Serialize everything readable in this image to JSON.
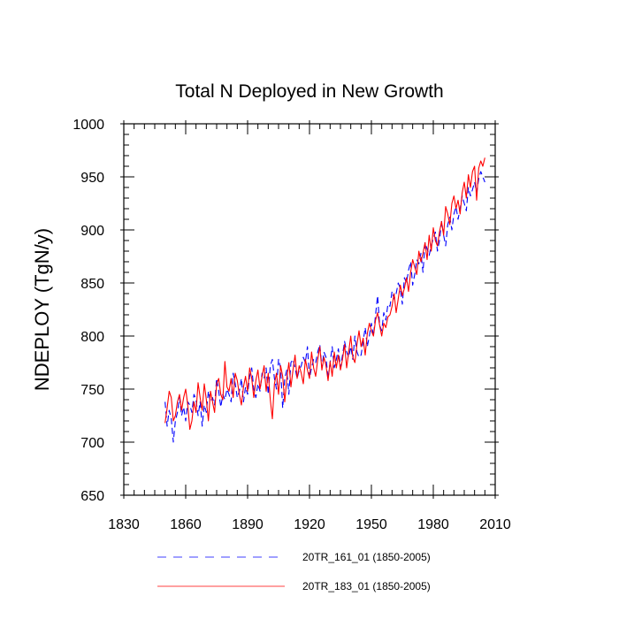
{
  "chart_data": {
    "type": "line",
    "title": "Total N Deployed in New Growth",
    "xlabel": "",
    "ylabel": "NDEPLOY  (TgN/y)",
    "xlim": [
      1830,
      2010
    ],
    "ylim": [
      650,
      1000
    ],
    "xticks": [
      1830,
      1860,
      1890,
      1920,
      1950,
      1980,
      2010
    ],
    "yticks": [
      650,
      700,
      750,
      800,
      850,
      900,
      950,
      1000
    ],
    "grid": false,
    "legend_position": "bottom",
    "series": [
      {
        "name": "20TR_161_01 (1850-2005)",
        "color": "#0000ff",
        "style": "dashed",
        "x": [
          1850,
          1851,
          1852,
          1853,
          1854,
          1855,
          1856,
          1857,
          1858,
          1859,
          1860,
          1861,
          1862,
          1863,
          1864,
          1865,
          1866,
          1867,
          1868,
          1869,
          1870,
          1871,
          1872,
          1873,
          1874,
          1875,
          1876,
          1877,
          1878,
          1879,
          1880,
          1881,
          1882,
          1883,
          1884,
          1885,
          1886,
          1887,
          1888,
          1889,
          1890,
          1891,
          1892,
          1893,
          1894,
          1895,
          1896,
          1897,
          1898,
          1899,
          1900,
          1901,
          1902,
          1903,
          1904,
          1905,
          1906,
          1907,
          1908,
          1909,
          1910,
          1911,
          1912,
          1913,
          1914,
          1915,
          1916,
          1917,
          1918,
          1919,
          1920,
          1921,
          1922,
          1923,
          1924,
          1925,
          1926,
          1927,
          1928,
          1929,
          1930,
          1931,
          1932,
          1933,
          1934,
          1935,
          1936,
          1937,
          1938,
          1939,
          1940,
          1941,
          1942,
          1943,
          1944,
          1945,
          1946,
          1947,
          1948,
          1949,
          1950,
          1951,
          1952,
          1953,
          1954,
          1955,
          1956,
          1957,
          1958,
          1959,
          1960,
          1961,
          1962,
          1963,
          1964,
          1965,
          1966,
          1967,
          1968,
          1969,
          1970,
          1971,
          1972,
          1973,
          1974,
          1975,
          1976,
          1977,
          1978,
          1979,
          1980,
          1981,
          1982,
          1983,
          1984,
          1985,
          1986,
          1987,
          1988,
          1989,
          1990,
          1991,
          1992,
          1993,
          1994,
          1995,
          1996,
          1997,
          1998,
          1999,
          2000,
          2001,
          2002,
          2003,
          2004,
          2005
        ],
        "values": [
          738,
          715,
          730,
          722,
          700,
          720,
          728,
          742,
          725,
          733,
          720,
          738,
          735,
          728,
          745,
          740,
          725,
          738,
          715,
          735,
          728,
          748,
          738,
          742,
          735,
          760,
          748,
          733,
          745,
          740,
          750,
          745,
          738,
          765,
          755,
          742,
          748,
          760,
          738,
          752,
          745,
          762,
          770,
          750,
          742,
          755,
          748,
          765,
          760,
          770,
          745,
          772,
          778,
          760,
          750,
          778,
          770,
          732,
          760,
          768,
          745,
          775,
          778,
          770,
          760,
          768,
          772,
          780,
          775,
          790,
          760,
          770,
          778,
          775,
          785,
          792,
          770,
          785,
          780,
          760,
          775,
          790,
          770,
          778,
          788,
          770,
          782,
          795,
          785,
          780,
          790,
          778,
          800,
          785,
          780,
          782,
          795,
          808,
          790,
          800,
          812,
          800,
          820,
          838,
          810,
          805,
          822,
          815,
          830,
          828,
          842,
          835,
          840,
          850,
          845,
          830,
          855,
          850,
          862,
          870,
          848,
          858,
          872,
          868,
          878,
          860,
          888,
          882,
          876,
          885,
          892,
          898,
          880,
          890,
          908,
          895,
          885,
          905,
          912,
          900,
          915,
          922,
          910,
          920,
          932,
          925,
          918,
          940,
          932,
          938,
          945,
          935,
          948,
          955,
          950,
          945
        ]
      },
      {
        "name": "20TR_183_01 (1850-2005)",
        "color": "#ff0000",
        "style": "solid",
        "x": [
          1850,
          1851,
          1852,
          1853,
          1854,
          1855,
          1856,
          1857,
          1858,
          1859,
          1860,
          1861,
          1862,
          1863,
          1864,
          1865,
          1866,
          1867,
          1868,
          1869,
          1870,
          1871,
          1872,
          1873,
          1874,
          1875,
          1876,
          1877,
          1878,
          1879,
          1880,
          1881,
          1882,
          1883,
          1884,
          1885,
          1886,
          1887,
          1888,
          1889,
          1890,
          1891,
          1892,
          1893,
          1894,
          1895,
          1896,
          1897,
          1898,
          1899,
          1900,
          1901,
          1902,
          1903,
          1904,
          1905,
          1906,
          1907,
          1908,
          1909,
          1910,
          1911,
          1912,
          1913,
          1914,
          1915,
          1916,
          1917,
          1918,
          1919,
          1920,
          1921,
          1922,
          1923,
          1924,
          1925,
          1926,
          1927,
          1928,
          1929,
          1930,
          1931,
          1932,
          1933,
          1934,
          1935,
          1936,
          1937,
          1938,
          1939,
          1940,
          1941,
          1942,
          1943,
          1944,
          1945,
          1946,
          1947,
          1948,
          1949,
          1950,
          1951,
          1952,
          1953,
          1954,
          1955,
          1956,
          1957,
          1958,
          1959,
          1960,
          1961,
          1962,
          1963,
          1964,
          1965,
          1966,
          1967,
          1968,
          1969,
          1970,
          1971,
          1972,
          1973,
          1974,
          1975,
          1976,
          1977,
          1978,
          1979,
          1980,
          1981,
          1982,
          1983,
          1984,
          1985,
          1986,
          1987,
          1988,
          1989,
          1990,
          1991,
          1992,
          1993,
          1994,
          1995,
          1996,
          1997,
          1998,
          1999,
          2000,
          2001,
          2002,
          2003,
          2004,
          2005
        ],
        "values": [
          718,
          732,
          748,
          742,
          720,
          725,
          738,
          745,
          730,
          742,
          750,
          735,
          712,
          720,
          738,
          728,
          756,
          742,
          730,
          755,
          740,
          720,
          748,
          738,
          728,
          755,
          760,
          745,
          740,
          776,
          752,
          748,
          760,
          742,
          765,
          758,
          745,
          735,
          752,
          762,
          748,
          770,
          760,
          742,
          758,
          768,
          750,
          762,
          772,
          748,
          765,
          740,
          722,
          755,
          765,
          745,
          772,
          762,
          738,
          760,
          775,
          752,
          768,
          782,
          760,
          772,
          765,
          755,
          778,
          768,
          760,
          785,
          770,
          762,
          778,
          790,
          768,
          780,
          772,
          758,
          776,
          762,
          785,
          770,
          782,
          768,
          778,
          792,
          770,
          785,
          800,
          780,
          775,
          792,
          805,
          790,
          798,
          782,
          802,
          812,
          805,
          800,
          815,
          822,
          810,
          800,
          812,
          808,
          818,
          820,
          828,
          840,
          822,
          835,
          848,
          838,
          845,
          855,
          842,
          860,
          872,
          865,
          858,
          880,
          870,
          878,
          888,
          872,
          895,
          880,
          902,
          890,
          885,
          898,
          908,
          895,
          922,
          915,
          905,
          925,
          932,
          920,
          928,
          915,
          935,
          945,
          930,
          952,
          940,
          955,
          960,
          928,
          958,
          965,
          960,
          968
        ]
      }
    ]
  }
}
